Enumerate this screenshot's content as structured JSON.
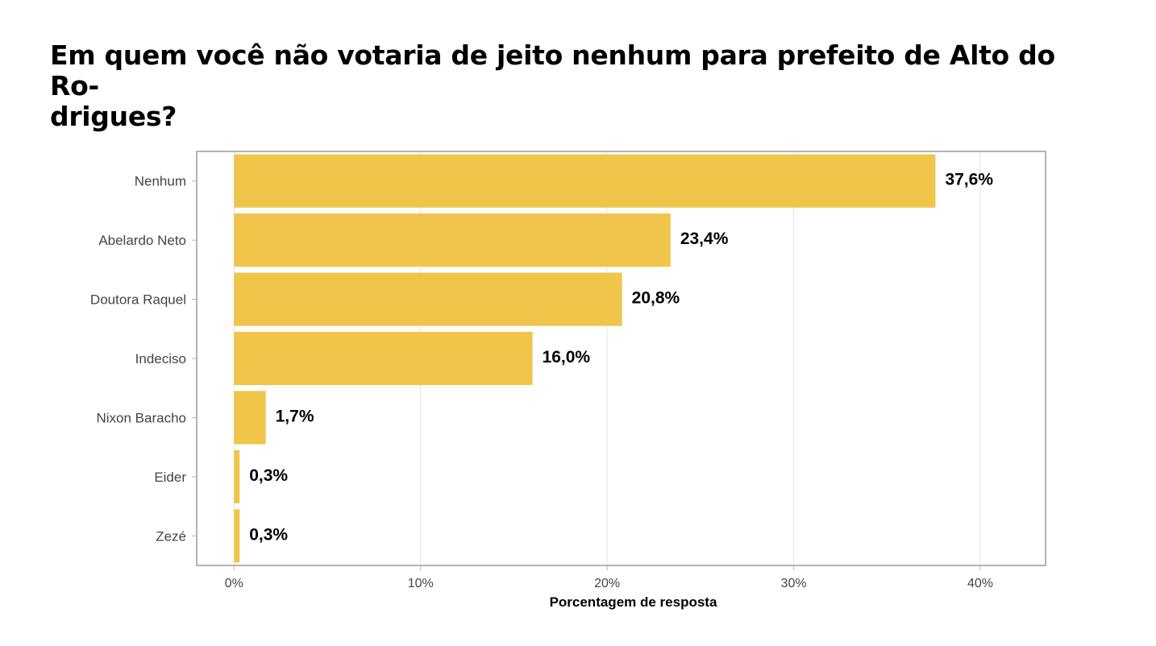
{
  "title_lines": [
    "Em quem você não votaria de jeito nenhum para prefeito de Alto do Ro-",
    "drigues?"
  ],
  "chart_data": {
    "type": "bar",
    "orientation": "horizontal",
    "title": "Em quem você não votaria de jeito nenhum para prefeito de Alto do Rodrigues?",
    "categories": [
      "Nenhum",
      "Abelardo Neto",
      "Doutora Raquel",
      "Indeciso",
      "Nixon Baracho",
      "Eider",
      "Zezé"
    ],
    "values": [
      37.6,
      23.4,
      20.8,
      16.0,
      1.7,
      0.3,
      0.3
    ],
    "value_labels": [
      "37,6%",
      "23,4%",
      "20,8%",
      "16,0%",
      "1,7%",
      "0,3%",
      "0,3%"
    ],
    "xlabel": "Porcentagem de resposta",
    "ylabel": "",
    "xlim": [
      -2,
      43.5
    ],
    "xticks": [
      0,
      10,
      20,
      30,
      40
    ],
    "xtick_labels": [
      "0%",
      "10%",
      "20%",
      "30%",
      "40%"
    ],
    "grid": "vertical",
    "bar_color": "#EFC54A"
  }
}
